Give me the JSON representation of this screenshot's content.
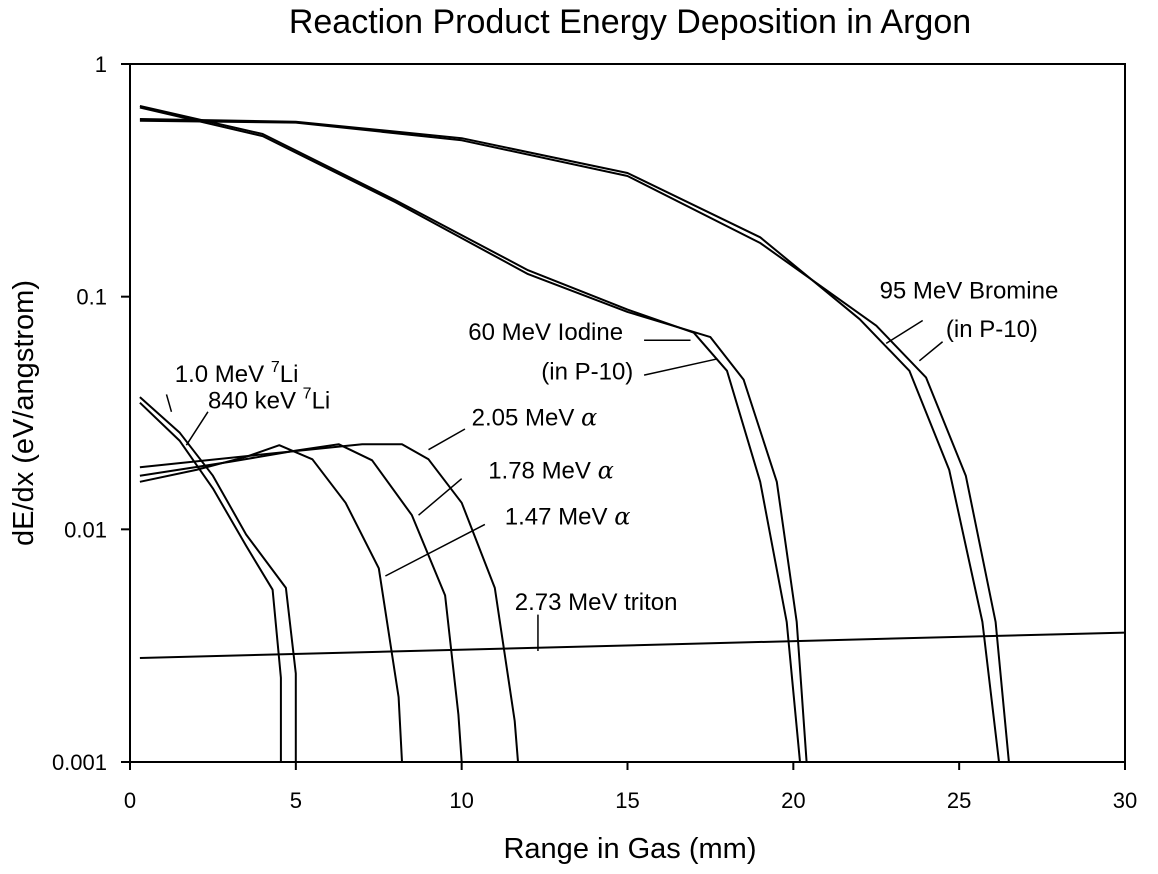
{
  "chart_data": {
    "type": "line",
    "title": "Reaction Product Energy Deposition in Argon",
    "xlabel": "Range in Gas (mm)",
    "ylabel": "dE/dx (eV/angstrom)",
    "xlim": [
      0,
      30
    ],
    "ylim": [
      0.001,
      1
    ],
    "yscale": "log",
    "grid": false,
    "legend": "none",
    "x_ticks": [
      0,
      5,
      10,
      15,
      20,
      25,
      30
    ],
    "x_tick_labels": [
      "0",
      "5",
      "10",
      "15",
      "20",
      "25",
      "30"
    ],
    "y_ticks": [
      0.001,
      0.01,
      0.1,
      1
    ],
    "y_tick_labels": [
      "0.001",
      "0.01",
      "0.1",
      "1"
    ],
    "series": [
      {
        "x": [
          0.3,
          1.5,
          2.5,
          3.5,
          4.3,
          4.55,
          4.55
        ],
        "y": [
          0.035,
          0.024,
          0.015,
          0.0085,
          0.0055,
          0.0023,
          0.001
        ]
      },
      {
        "x": [
          0.3,
          1.5,
          2.5,
          3.5,
          4.7,
          5.0,
          5.0
        ],
        "y": [
          0.037,
          0.026,
          0.017,
          0.0095,
          0.0056,
          0.0024,
          0.001
        ]
      },
      {
        "x": [
          0.3,
          2.0,
          3.5,
          4.5,
          5.5,
          6.5,
          7.5,
          8.1,
          8.2
        ],
        "y": [
          0.016,
          0.018,
          0.0205,
          0.023,
          0.02,
          0.013,
          0.0068,
          0.0019,
          0.001
        ]
      },
      {
        "x": [
          0.3,
          3.0,
          5.0,
          6.3,
          7.3,
          8.5,
          9.5,
          9.9,
          10.0
        ],
        "y": [
          0.017,
          0.0195,
          0.0218,
          0.0232,
          0.0198,
          0.0115,
          0.0052,
          0.0016,
          0.001
        ]
      },
      {
        "x": [
          0.3,
          4.0,
          7.0,
          8.2,
          9.0,
          10.0,
          11.0,
          11.6,
          11.7
        ],
        "y": [
          0.0185,
          0.021,
          0.0232,
          0.0232,
          0.02,
          0.013,
          0.0056,
          0.0015,
          0.001
        ]
      },
      {
        "x": [
          0.3,
          30.0
        ],
        "y": [
          0.0028,
          0.0036
        ]
      },
      {
        "x": [
          0.3,
          4,
          8,
          12,
          15,
          17,
          18,
          19,
          19.8,
          20.2
        ],
        "y": [
          0.66,
          0.5,
          0.26,
          0.13,
          0.088,
          0.07,
          0.048,
          0.016,
          0.004,
          0.001
        ]
      },
      {
        "x": [
          0.3,
          4,
          8,
          12,
          15,
          17.5,
          18.5,
          19.5,
          20.1,
          20.4
        ],
        "y": [
          0.65,
          0.49,
          0.255,
          0.125,
          0.086,
          0.067,
          0.044,
          0.016,
          0.004,
          0.001
        ]
      },
      {
        "x": [
          0.3,
          5,
          10,
          15,
          19,
          22,
          23.5,
          24.7,
          25.7,
          26.2
        ],
        "y": [
          0.58,
          0.565,
          0.48,
          0.34,
          0.18,
          0.08,
          0.048,
          0.018,
          0.004,
          0.001
        ]
      },
      {
        "x": [
          0.3,
          5,
          10,
          15,
          19,
          22.5,
          24,
          25.2,
          26.1,
          26.5
        ],
        "y": [
          0.57,
          0.56,
          0.47,
          0.33,
          0.17,
          0.075,
          0.045,
          0.017,
          0.004,
          0.001
        ]
      }
    ],
    "annotations": [
      {
        "text_main": "1.0 MeV ",
        "sup": "7",
        "text_tail": "Li",
        "anchor": [
          1.35,
          0.043
        ],
        "leader": [
          [
            1.1,
            0.038
          ],
          [
            1.25,
            0.032
          ]
        ]
      },
      {
        "text_main": "840 keV ",
        "sup": "7",
        "text_tail": "Li",
        "anchor": [
          2.35,
          0.033
        ],
        "leader": [
          [
            2.35,
            0.032
          ],
          [
            1.7,
            0.023
          ]
        ]
      },
      {
        "text_main": "2.05 MeV ",
        "greek": "α",
        "anchor": [
          10.3,
          0.028
        ],
        "leader": [
          [
            10.1,
            0.027
          ],
          [
            9.0,
            0.022
          ]
        ]
      },
      {
        "text_main": "1.78 MeV ",
        "greek": "α",
        "anchor": [
          10.8,
          0.0165
        ],
        "leader": [
          [
            10.0,
            0.0165
          ],
          [
            8.7,
            0.0115
          ]
        ]
      },
      {
        "text_main": "1.47 MeV ",
        "greek": "α",
        "anchor": [
          11.3,
          0.0105
        ],
        "leader": [
          [
            10.7,
            0.0105
          ],
          [
            7.7,
            0.0063
          ]
        ]
      },
      {
        "text_main": "2.73 MeV triton",
        "anchor": [
          11.6,
          0.0045
        ],
        "leader": [
          [
            12.3,
            0.0043
          ],
          [
            12.3,
            0.003
          ]
        ]
      },
      {
        "text_main": "60 MeV Iodine",
        "anchor": [
          10.2,
          0.065
        ],
        "leader": [
          [
            15.5,
            0.065
          ],
          [
            16.9,
            0.065
          ]
        ]
      },
      {
        "text_main": "(in P-10)",
        "anchor": [
          12.4,
          0.044
        ],
        "leader": [
          [
            15.5,
            0.046
          ],
          [
            17.7,
            0.054
          ]
        ]
      },
      {
        "text_main": "95 MeV Bromine",
        "anchor": [
          22.6,
          0.098
        ],
        "leader": [
          [
            23.9,
            0.079
          ],
          [
            22.8,
            0.063
          ]
        ]
      },
      {
        "text_main": "(in P-10)",
        "anchor": [
          24.6,
          0.067
        ],
        "leader": [
          [
            24.5,
            0.064
          ],
          [
            23.8,
            0.053
          ]
        ]
      }
    ]
  }
}
